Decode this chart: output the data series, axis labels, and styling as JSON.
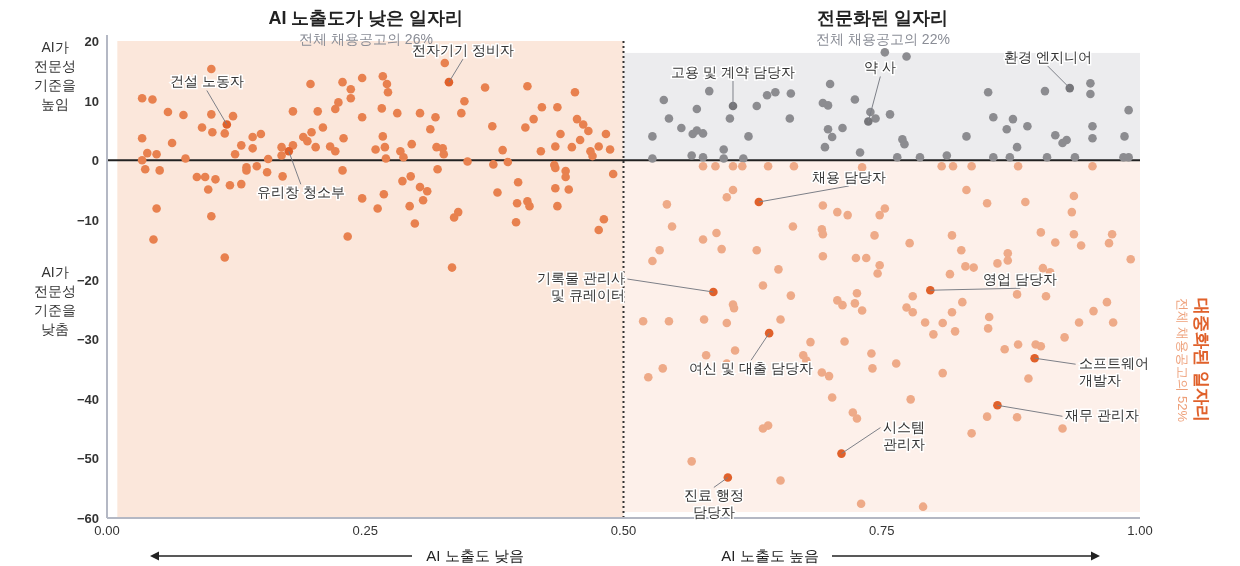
{
  "chart_data": {
    "type": "scatter",
    "xlim": [
      0,
      1
    ],
    "ylim": [
      -60,
      20
    ],
    "xticks": [
      {
        "value": 0,
        "label": "0.00"
      },
      {
        "value": 0.25,
        "label": "0.25"
      },
      {
        "value": 0.5,
        "label": "0.50"
      },
      {
        "value": 0.75,
        "label": "0.75"
      },
      {
        "value": 1,
        "label": "1.00"
      }
    ],
    "yticks": [
      -60,
      -50,
      -40,
      -30,
      -20,
      -10,
      0,
      10,
      20
    ],
    "marker": "circle",
    "bands": [
      {
        "axis": "x",
        "from": 0.01,
        "to": 0.5,
        "color": "#fbe7db"
      },
      {
        "axis": "y",
        "from": 0,
        "to": 18,
        "color": "#ececee"
      },
      {
        "axis": "y",
        "from": -59,
        "to": 0,
        "color": "#fdf0ea"
      }
    ],
    "ref_lines": [
      {
        "axis": "y",
        "value": 0,
        "color": "#222222",
        "line_style": "solid"
      },
      {
        "axis": "x",
        "value": 0.5,
        "color": "#333333",
        "line_style": "dotted"
      }
    ],
    "series": [
      {
        "color": "#e8814f",
        "x": [
          0.034,
          0.044,
          0.034,
          0.039,
          0.048,
          0.034,
          0.037,
          0.051,
          0.048,
          0.045,
          0.059,
          0.063,
          0.074,
          0.076,
          0.101,
          0.101,
          0.092,
          0.102,
          0.114,
          0.122,
          0.13,
          0.124,
          0.087,
          0.095,
          0.098,
          0.105,
          0.101,
          0.114,
          0.119,
          0.13,
          0.135,
          0.135,
          0.145,
          0.155,
          0.156,
          0.141,
          0.149,
          0.141,
          0.169,
          0.169,
          0.18,
          0.19,
          0.194,
          0.198,
          0.202,
          0.209,
          0.204,
          0.197,
          0.18,
          0.216,
          0.221,
          0.221,
          0.224,
          0.228,
          0.236,
          0.236,
          0.247,
          0.247,
          0.229,
          0.17,
          0.228,
          0.247,
          0.233,
          0.262,
          0.267,
          0.271,
          0.272,
          0.266,
          0.267,
          0.26,
          0.269,
          0.27,
          0.268,
          0.281,
          0.284,
          0.287,
          0.295,
          0.303,
          0.313,
          0.318,
          0.319,
          0.325,
          0.326,
          0.32,
          0.286,
          0.294,
          0.293,
          0.298,
          0.303,
          0.31,
          0.306,
          0.327,
          0.336,
          0.334,
          0.34,
          0.366,
          0.407,
          0.453,
          0.346,
          0.343,
          0.373,
          0.405,
          0.413,
          0.421,
          0.436,
          0.455,
          0.461,
          0.466,
          0.439,
          0.458,
          0.483,
          0.383,
          0.42,
          0.434,
          0.45,
          0.468,
          0.47,
          0.476,
          0.487,
          0.349,
          0.374,
          0.388,
          0.433,
          0.434,
          0.444,
          0.444,
          0.49,
          0.398,
          0.378,
          0.434,
          0.447,
          0.397,
          0.407,
          0.409,
          0.436,
          0.396,
          0.481,
          0.476
        ],
        "values": [
          10.4,
          10.2,
          3.7,
          1.2,
          1.0,
          0,
          -1.5,
          -1.7,
          -8.1,
          -13.3,
          8.1,
          2.9,
          7.6,
          0.3,
          15.3,
          7.7,
          5.5,
          4.7,
          4.5,
          7.4,
          2.5,
          1.0,
          -2.8,
          -2.8,
          -4.9,
          -3.2,
          -9.4,
          -16.3,
          -4.2,
          -4.0,
          -1.7,
          -1.2,
          -1.0,
          -2.0,
          0.2,
          3.9,
          4.4,
          2.0,
          2.2,
          0.8,
          2.5,
          3.9,
          3.2,
          4.7,
          2.2,
          5.5,
          8.2,
          12.8,
          8.2,
          2.3,
          1.5,
          8.6,
          9.7,
          13.1,
          11.9,
          10.4,
          13.8,
          7.2,
          3.7,
          -2.7,
          -1.7,
          -6.4,
          -12.8,
          -8.1,
          14.1,
          12.8,
          11.4,
          8.7,
          4.0,
          1.8,
          2.2,
          0.3,
          -5.7,
          7.9,
          1.5,
          0.5,
          2.7,
          7.9,
          5.2,
          7.2,
          2.2,
          2.0,
          1.0,
          -1.5,
          -3.5,
          -2.7,
          -7.7,
          -10.6,
          -4.5,
          -5.2,
          -6.7,
          16.3,
          -9.6,
          -18.0,
          -8.7,
          12.2,
          12.4,
          11.4,
          9.9,
          7.9,
          5.7,
          5.5,
          6.9,
          8.9,
          8.9,
          6.9,
          6.0,
          4.9,
          4.4,
          3.4,
          4.4,
          1.7,
          1.5,
          2.3,
          2.2,
          1.5,
          0.7,
          2.3,
          1.8,
          -0.2,
          -0.7,
          -0.3,
          -0.8,
          -1.3,
          -1.8,
          -2.8,
          -2.3,
          -3.7,
          -5.4,
          -4.7,
          -4.9,
          -7.2,
          -6.9,
          -7.7,
          -7.7,
          -10.4,
          -9.9,
          -11.7
        ]
      },
      {
        "color": "#8c8c90",
        "x": [
          0.539,
          0.544,
          0.528,
          0.556,
          0.571,
          0.571,
          0.567,
          0.577,
          0.583,
          0.603,
          0.629,
          0.639,
          0.647,
          0.662,
          0.661,
          0.621,
          0.597,
          0.528,
          0.566,
          0.577,
          0.597,
          0.616,
          0.753,
          0.774,
          0.7,
          0.693,
          0.698,
          0.724,
          0.739,
          0.744,
          0.758,
          0.698,
          0.712,
          0.702,
          0.695,
          0.729,
          0.77,
          0.772,
          0.853,
          0.832,
          0.858,
          0.877,
          0.871,
          0.891,
          0.908,
          0.952,
          0.952,
          0.989,
          0.954,
          0.954,
          0.985,
          0.918,
          0.929,
          0.925,
          0.881,
          0.813,
          0.765,
          0.787,
          0.858,
          0.874,
          0.91,
          0.937,
          0.984,
          0.989
        ],
        "values": [
          10.1,
          7.0,
          4.0,
          5.4,
          8.6,
          5.0,
          4.4,
          4.5,
          11.6,
          7.0,
          9.1,
          10.9,
          11.4,
          11.2,
          7.0,
          4.0,
          1.8,
          0.3,
          0.8,
          0.5,
          0.3,
          0.3,
          18.1,
          17.4,
          12.8,
          9.6,
          9.2,
          10.2,
          8.1,
          7.0,
          7.7,
          5.2,
          5.4,
          3.9,
          2.2,
          1.3,
          3.5,
          2.7,
          11.4,
          4.0,
          7.2,
          6.9,
          5.2,
          5.7,
          11.6,
          12.9,
          11.1,
          8.4,
          5.7,
          3.7,
          4.0,
          4.2,
          3.4,
          2.9,
          2.2,
          0.8,
          0.5,
          0.5,
          0.5,
          0.5,
          0.5,
          0.5,
          0.5,
          0.5
        ]
      },
      {
        "color": "#eeaa88",
        "x": [
          0.577,
          0.589,
          0.606,
          0.615,
          0.64,
          0.665,
          0.606,
          0.6,
          0.542,
          0.547,
          0.59,
          0.577,
          0.595,
          0.629,
          0.535,
          0.528,
          0.65,
          0.635,
          0.664,
          0.731,
          0.808,
          0.819,
          0.837,
          0.882,
          0.954,
          0.832,
          0.852,
          0.889,
          0.936,
          0.934,
          0.693,
          0.707,
          0.717,
          0.748,
          0.753,
          0.692,
          0.693,
          0.743,
          0.777,
          0.818,
          0.827,
          0.904,
          0.918,
          0.936,
          0.943,
          0.973,
          0.97,
          0.991,
          0.693,
          0.725,
          0.735,
          0.748,
          0.746,
          0.816,
          0.831,
          0.839,
          0.862,
          0.872,
          0.872,
          0.906,
          0.913,
          0.662,
          0.606,
          0.607,
          0.519,
          0.544,
          0.578,
          0.6,
          0.652,
          0.58,
          0.608,
          0.538,
          0.524,
          0.6,
          0.635,
          0.64,
          0.566,
          0.652,
          0.726,
          0.707,
          0.712,
          0.724,
          0.731,
          0.78,
          0.774,
          0.78,
          0.828,
          0.818,
          0.792,
          0.809,
          0.8,
          0.821,
          0.854,
          0.853,
          0.881,
          0.909,
          0.968,
          0.955,
          0.941,
          0.974,
          0.927,
          0.869,
          0.882,
          0.899,
          0.904,
          0.892,
          0.681,
          0.714,
          0.674,
          0.677,
          0.74,
          0.741,
          0.764,
          0.809,
          0.692,
          0.699,
          0.702,
          0.778,
          0.722,
          0.726,
          0.852,
          0.881,
          0.837,
          0.925,
          0.73,
          0.79
        ],
        "values": [
          -1.0,
          -1.0,
          -1.0,
          -1.0,
          -1.0,
          -1.0,
          -5.0,
          -6.2,
          -7.4,
          -11.1,
          -12.2,
          -13.3,
          -14.9,
          -15.1,
          -15.1,
          -16.9,
          -18.3,
          -21.0,
          -11.1,
          -1.2,
          -1.0,
          -1.0,
          -1.0,
          -1.0,
          -1.0,
          -5.0,
          -7.2,
          -7.0,
          -6.0,
          -8.7,
          -7.6,
          -8.7,
          -9.2,
          -9.2,
          -8.1,
          -11.6,
          -12.4,
          -12.6,
          -13.9,
          -12.6,
          -15.1,
          -12.1,
          -13.8,
          -12.4,
          -14.3,
          -12.4,
          -13.9,
          -16.6,
          -16.1,
          -16.4,
          -16.4,
          -17.6,
          -19.0,
          -19.1,
          -17.8,
          -18.0,
          -17.3,
          -16.8,
          -15.6,
          -18.1,
          -18.8,
          -22.7,
          -24.2,
          -24.8,
          -27.0,
          -27.0,
          -26.7,
          -27.3,
          -26.7,
          -32.7,
          -31.9,
          -34.9,
          -36.4,
          -34.1,
          -45.0,
          -44.5,
          -50.5,
          -53.7,
          -22.3,
          -23.5,
          -24.3,
          -24.0,
          -25.2,
          -22.8,
          -24.7,
          -25.5,
          -23.8,
          -25.5,
          -27.2,
          -27.3,
          -29.2,
          -28.7,
          -26.3,
          -28.2,
          -22.5,
          -22.8,
          -23.8,
          -25.3,
          -27.2,
          -27.2,
          -29.7,
          -31.7,
          -30.9,
          -30.9,
          -31.2,
          -36.6,
          -30.5,
          -30.4,
          -32.7,
          -33.6,
          -32.4,
          -34.9,
          -34.1,
          -35.7,
          -35.6,
          -36.2,
          -39.8,
          -40.1,
          -42.3,
          -43.3,
          -43.0,
          -43.1,
          -45.8,
          -45.0,
          -57.6,
          -58.1
        ]
      },
      {
        "x": [
          0.116,
          0.176,
          0.331,
          0.606,
          0.737,
          0.932,
          0.631,
          0.587,
          0.797,
          0.641,
          0.898,
          0.862,
          0.711,
          0.601
        ],
        "values": [
          6.0,
          1.5,
          13.1,
          9.1,
          6.5,
          12.1,
          -7.0,
          -22.1,
          -21.8,
          -29.0,
          -33.2,
          -41.1,
          -49.2,
          -53.2
        ],
        "colors": [
          "#e0612b",
          "#e0612b",
          "#e0612b",
          "#76767a",
          "#76767a",
          "#76767a",
          "#e0612b",
          "#e0612b",
          "#e0612b",
          "#e0612b",
          "#e0612b",
          "#e0612b",
          "#e0612b",
          "#e0612b"
        ]
      }
    ],
    "annotations": [
      "AI 노출도가 낮은 일자리",
      "전체 채용공고의 26%",
      "전문화된 일자리",
      "전체 채용공고의 22%",
      "대중화된 일자리",
      "전체 채용공고의 52%",
      "AI가\n전문성\n기준을\n높임",
      "AI가\n전문성\n기준을\n낮춤",
      "AI 노출도 낮음",
      "AI 노출도 높음",
      {
        "text": "건설 노동자",
        "x": 0.116,
        "y": 6.0
      },
      {
        "text": "유리창 청소부",
        "x": 0.176,
        "y": 1.5
      },
      {
        "text": "전자기기 정비자",
        "x": 0.331,
        "y": 13.1
      },
      {
        "text": "고용 및 계약 담당자",
        "x": 0.606,
        "y": 9.1
      },
      {
        "text": "약 사",
        "x": 0.737,
        "y": 6.5
      },
      {
        "text": "환경 엔지니어",
        "x": 0.932,
        "y": 12.1
      },
      {
        "text": "채용 담당자",
        "x": 0.631,
        "y": -7.0
      },
      {
        "text": "기록물 관리사\n및 큐레이터",
        "x": 0.587,
        "y": -22.1
      },
      {
        "text": "영업 담당자",
        "x": 0.797,
        "y": -21.8
      },
      {
        "text": "여신 및 대출 담당자",
        "x": 0.641,
        "y": -29.0
      },
      {
        "text": "소프트웨어\n개발자",
        "x": 0.898,
        "y": -33.2
      },
      {
        "text": "재무 관리자",
        "x": 0.862,
        "y": -41.1
      },
      {
        "text": "시스템\n관리자",
        "x": 0.711,
        "y": -49.2
      },
      {
        "text": "진료 행정\n담당자",
        "x": 0.601,
        "y": -53.2
      }
    ]
  }
}
